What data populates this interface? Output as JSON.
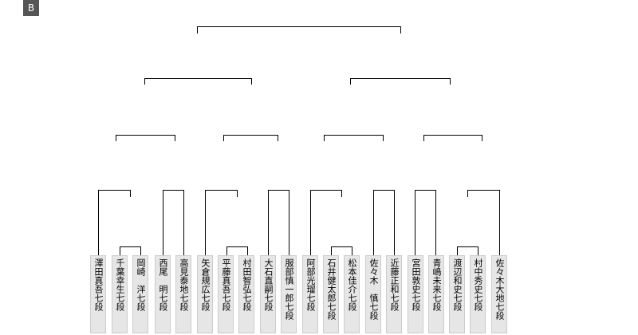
{
  "badge": "B",
  "players": [
    "澤田真吾七段",
    "千葉幸生七段",
    "岡崎　洋七段",
    "西尾　明七段",
    "高見泰地七段",
    "矢倉規広七段",
    "平藤真吾七段",
    "村田智弘七段",
    "大石直嗣七段",
    "服部慎一郎七段",
    "阿部光瑠七段",
    "石井健太郎七段",
    "松本佳介七段",
    "佐々木　慎七段",
    "近藤正和七段",
    "宮田敦史七段",
    "青嶋未来七段",
    "渡辺和史七段",
    "村中秀史七段",
    "佐々木大地七段"
  ]
}
